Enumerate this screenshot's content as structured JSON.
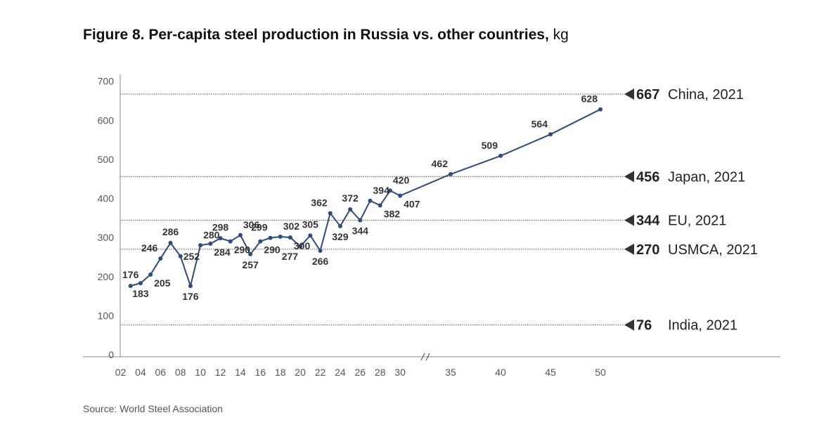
{
  "header": {
    "title_main": "Figure 8. Per-capita steel production in Russia vs. other countries,",
    "title_unit": "kg"
  },
  "footer": {
    "source": "Source: World Steel Association"
  },
  "colors": {
    "series": "#2f4a7d",
    "reference_line": "#555555",
    "axis": "#888888"
  },
  "chart_data": {
    "type": "line",
    "title": "Figure 8. Per-capita steel production in Russia vs. other countries, kg",
    "xlabel": "",
    "ylabel": "",
    "ylim": [
      0,
      700
    ],
    "yticks": [
      0,
      100,
      200,
      300,
      400,
      500,
      600,
      700
    ],
    "axis_break_between": [
      30,
      35
    ],
    "xticks": [
      {
        "x": 2,
        "label": "02"
      },
      {
        "x": 4,
        "label": "04"
      },
      {
        "x": 6,
        "label": "06"
      },
      {
        "x": 8,
        "label": "08"
      },
      {
        "x": 10,
        "label": "10"
      },
      {
        "x": 12,
        "label": "12"
      },
      {
        "x": 14,
        "label": "14"
      },
      {
        "x": 16,
        "label": "16"
      },
      {
        "x": 18,
        "label": "18"
      },
      {
        "x": 20,
        "label": "20"
      },
      {
        "x": 22,
        "label": "22"
      },
      {
        "x": 24,
        "label": "24"
      },
      {
        "x": 26,
        "label": "26"
      },
      {
        "x": 28,
        "label": "28"
      },
      {
        "x": 30,
        "label": "30"
      },
      {
        "x": 35,
        "label": "35"
      },
      {
        "x": 40,
        "label": "40"
      },
      {
        "x": 45,
        "label": "45"
      },
      {
        "x": 50,
        "label": "50"
      }
    ],
    "series": [
      {
        "points": [
          {
            "x": 3,
            "y": 176,
            "pos": "above"
          },
          {
            "x": 4,
            "y": 183,
            "pos": "below"
          },
          {
            "x": 5,
            "y": 205,
            "pos": "below-right"
          },
          {
            "x": 6,
            "y": 246,
            "pos": "above-left"
          },
          {
            "x": 7,
            "y": 286,
            "pos": "above"
          },
          {
            "x": 8,
            "y": 252,
            "pos": "right"
          },
          {
            "x": 9,
            "y": 176,
            "pos": "below"
          },
          {
            "x": 10,
            "y": 280,
            "pos": "above-right"
          },
          {
            "x": 11,
            "y": 284,
            "pos": "below-right"
          },
          {
            "x": 12,
            "y": 298,
            "pos": "above"
          },
          {
            "x": 13,
            "y": 290,
            "pos": "below-right"
          },
          {
            "x": 14,
            "y": 306,
            "pos": "above-right"
          },
          {
            "x": 15,
            "y": 257,
            "pos": "below"
          },
          {
            "x": 16,
            "y": 290,
            "pos": "below-right"
          },
          {
            "x": 17,
            "y": 299,
            "pos": "above-left"
          },
          {
            "x": 18,
            "y": 302,
            "pos": "above-right"
          },
          {
            "x": 19,
            "y": 300,
            "pos": "below-right"
          },
          {
            "x": 20,
            "y": 277,
            "pos": "below-left"
          },
          {
            "x": 21,
            "y": 305,
            "pos": "above"
          },
          {
            "x": 22,
            "y": 266,
            "pos": "below"
          },
          {
            "x": 23,
            "y": 362,
            "pos": "above-left"
          },
          {
            "x": 24,
            "y": 329,
            "pos": "below"
          },
          {
            "x": 25,
            "y": 372,
            "pos": "above"
          },
          {
            "x": 26,
            "y": 344,
            "pos": "below"
          },
          {
            "x": 27,
            "y": 394,
            "pos": "above-right"
          },
          {
            "x": 28,
            "y": 382,
            "pos": "below-right"
          },
          {
            "x": 29,
            "y": 420,
            "pos": "above-right"
          },
          {
            "x": 30,
            "y": 407,
            "pos": "below-right"
          },
          {
            "x": 35,
            "y": 462,
            "pos": "above-left"
          },
          {
            "x": 40,
            "y": 509,
            "pos": "above-left"
          },
          {
            "x": 45,
            "y": 564,
            "pos": "above-left"
          },
          {
            "x": 50,
            "y": 628,
            "pos": "above-left"
          }
        ]
      }
    ],
    "reference_lines": [
      {
        "value": 667,
        "label_value": "667",
        "label_text": "China, 2021"
      },
      {
        "value": 456,
        "label_value": "456",
        "label_text": "Japan, 2021"
      },
      {
        "value": 344,
        "label_value": "344",
        "label_text": "EU, 2021"
      },
      {
        "value": 270,
        "label_value": "270",
        "label_text": "USMCA, 2021"
      },
      {
        "value": 76,
        "label_value": "76",
        "label_text": "India, 2021"
      }
    ],
    "grid": false,
    "legend": "none"
  }
}
